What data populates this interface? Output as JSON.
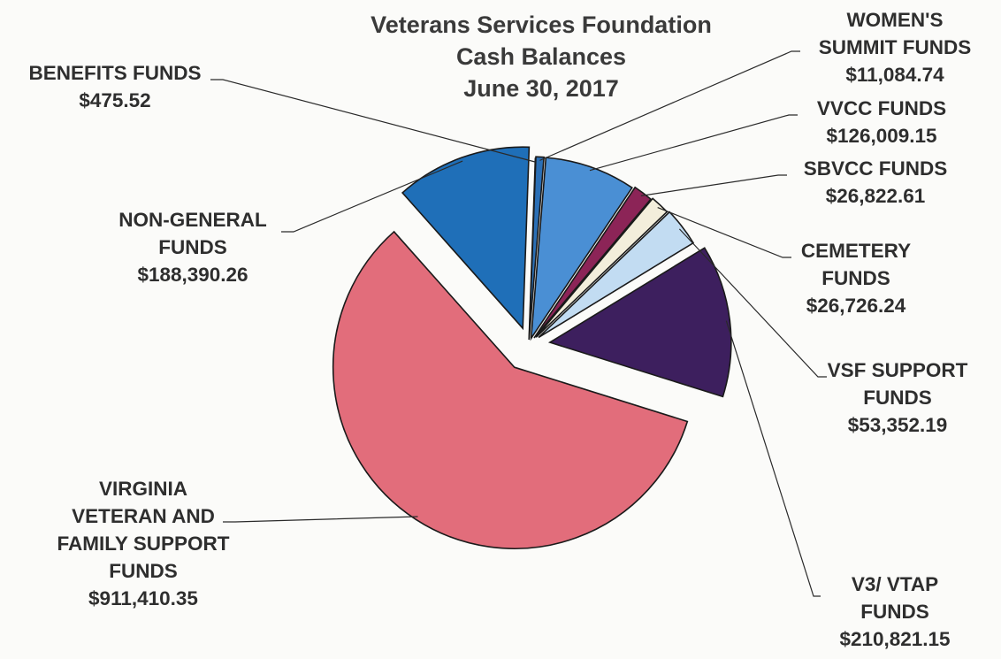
{
  "chart_data": {
    "type": "pie",
    "title_lines": [
      "Veterans Services Foundation",
      "Cash Balances",
      "June 30, 2017"
    ],
    "unit": "$",
    "slices": [
      {
        "key": "benefits",
        "label_lines": [
          "BENEFITS FUNDS"
        ],
        "value_text": "$475.52",
        "value": 475.52,
        "color": "#1f5fa6"
      },
      {
        "key": "womens",
        "label_lines": [
          "WOMEN'S",
          "SUMMIT FUNDS"
        ],
        "value_text": "$11,084.74",
        "value": 11084.74,
        "color": "#2b6fb5"
      },
      {
        "key": "vvcc",
        "label_lines": [
          "VVCC FUNDS"
        ],
        "value_text": "$126,009.15",
        "value": 126009.15,
        "color": "#4a8fd4"
      },
      {
        "key": "sbvcc",
        "label_lines": [
          "SBVCC FUNDS"
        ],
        "value_text": "$26,822.61",
        "value": 26822.61,
        "color": "#8c2457"
      },
      {
        "key": "cemetery",
        "label_lines": [
          "CEMETERY",
          "FUNDS"
        ],
        "value_text": "$26,726.24",
        "value": 26726.24,
        "color": "#f3eedb"
      },
      {
        "key": "vsf",
        "label_lines": [
          "VSF SUPPORT",
          "FUNDS"
        ],
        "value_text": "$53,352.19",
        "value": 53352.19,
        "color": "#c2dcf2"
      },
      {
        "key": "v3",
        "label_lines": [
          "V3/ VTAP",
          "FUNDS"
        ],
        "value_text": "$210,821.15",
        "value": 210821.15,
        "color": "#3d1f5e"
      },
      {
        "key": "virginia",
        "label_lines": [
          "VIRGINIA",
          "VETERAN AND",
          "FAMILY SUPPORT",
          "FUNDS"
        ],
        "value_text": "$911,410.35",
        "value": 911410.35,
        "color": "#e26d7b"
      },
      {
        "key": "nongeneral",
        "label_lines": [
          "NON-GENERAL",
          "FUNDS"
        ],
        "value_text": "$188,390.26",
        "value": 188390.26,
        "color": "#1f6fb8"
      }
    ]
  }
}
